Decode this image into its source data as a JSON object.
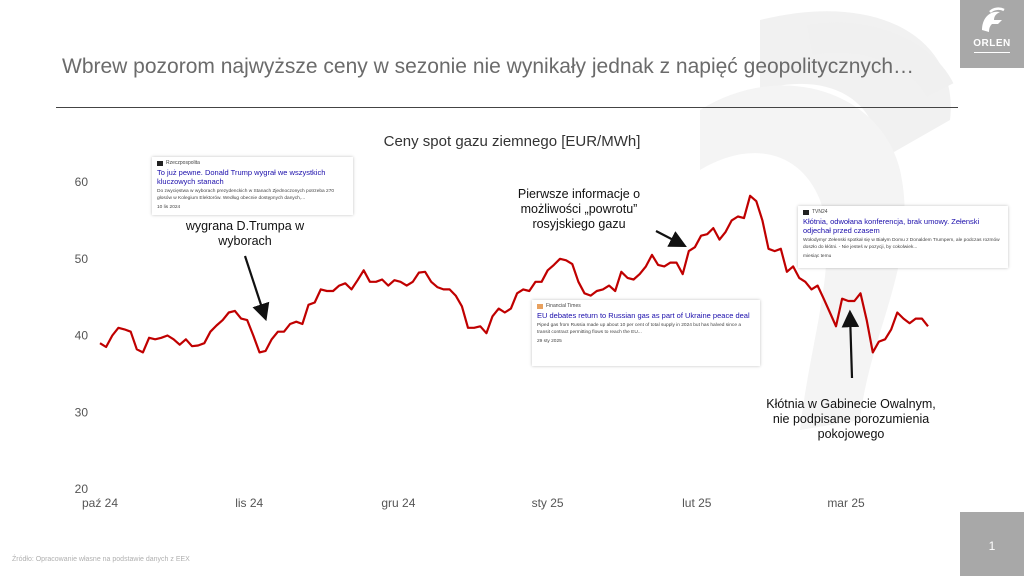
{
  "slide": {
    "title": "Wbrew pozorom najwyższe ceny w sezonie nie wynikały jednak z napięć geopolitycznych…",
    "logo_text": "ORLEN",
    "page_number": "1",
    "source_note": "Źródło: Opracowanie własne na podstawie danych z EEX",
    "colors": {
      "line": "#c00000",
      "title": "#6b6b6b",
      "accent_box": "#a8a8a8"
    }
  },
  "chart_data": {
    "type": "line",
    "title": "Ceny spot gazu ziemnego  [EUR/MWh]",
    "ylim": [
      20,
      60
    ],
    "yticks": [
      "20",
      "30",
      "40",
      "50",
      "60"
    ],
    "xticks": [
      "paź 24",
      "lis 24",
      "gru 24",
      "sty 25",
      "lut 25",
      "mar 25"
    ],
    "series": [
      {
        "values": [
          39.0,
          38.5,
          40.0,
          41.0,
          40.8,
          40.5,
          38.2,
          37.8,
          39.7,
          39.5,
          39.7,
          40.0,
          39.5,
          38.8,
          39.5,
          38.6,
          38.7,
          39.0,
          40.5,
          41.3,
          42.0,
          43.0,
          43.2,
          42.2,
          42.0,
          40.0,
          37.8,
          38.0,
          39.5,
          40.5,
          40.5,
          41.5,
          41.8,
          41.5,
          44.0,
          44.3,
          46.0,
          45.8,
          45.8,
          46.5,
          46.8,
          46.0,
          47.2,
          48.5,
          47.0,
          47.0,
          47.3,
          46.5,
          47.2,
          47.0,
          46.5,
          47.0,
          48.2,
          48.3,
          47.0,
          46.3,
          46.0,
          46.0,
          45.2,
          43.8,
          41.0,
          41.0,
          41.2,
          40.3,
          42.5,
          43.5,
          43.0,
          43.5,
          45.5,
          46.0,
          45.8,
          47.0,
          47.0,
          48.5,
          49.2,
          50.0,
          49.8,
          49.3,
          47.0,
          45.5,
          45.2,
          45.8,
          46.0,
          46.5,
          45.8,
          48.3,
          47.5,
          47.3,
          48.0,
          49.0,
          50.5,
          49.2,
          49.0,
          49.5,
          49.5,
          48.0,
          51.0,
          51.5,
          53.0,
          53.2,
          54.0,
          52.5,
          53.5,
          55.0,
          55.5,
          55.3,
          58.2,
          57.5,
          55.0,
          51.3,
          51.0,
          51.3,
          48.3,
          49.0,
          47.5,
          47.0,
          46.0,
          46.5,
          44.8,
          43.0,
          41.2,
          44.8,
          44.5,
          44.5,
          45.5,
          42.0,
          37.8,
          39.2,
          39.5,
          40.8,
          43.0,
          42.2,
          41.6,
          42.2,
          42.2,
          41.2
        ]
      }
    ],
    "annotations": [
      {
        "text": "wygrana D.Trumpa w wyborach"
      },
      {
        "text": "Pierwsze informacje o możliwości „powrotu” rosyjskiego gazu"
      },
      {
        "text": "Kłótnia w Gabinecie Owalnym,  nie podpisane porozumienia pokojowego"
      }
    ]
  },
  "news_cards": [
    {
      "source": "Rzeczpospolita",
      "headline": "To już pewne. Donald Trump wygrał we wszystkich kluczowych stanach",
      "body": "Do zwycięstwa w wyborach prezydenckich w Stanach Zjednoczonych potrzeba 270 głosów w Kolegium Elektorów. Według obecnie dostępnych danych,...",
      "date": "10 lis 2024"
    },
    {
      "source": "Financial Times",
      "headline": "EU debates return to Russian gas as part of Ukraine peace deal",
      "body": "Piped gas from Russia made up about 10 per cent of total supply in 2024 but has halved since a transit contract permitting flows to reach the EU...",
      "date": "29 sty 2025"
    },
    {
      "source": "TVN24",
      "headline": "Kłótnia, odwołana konferencja, brak umowy. Zełenski odjechał przed czasem",
      "body": "Wołodymyr Zełenski spotkał się w Białym Domu z Donaldem Trumpem, ale podczas rozmów doszło do kłótni. - Nie jesteś w pozycji, by cokolwiek...",
      "date": "miesiąc temu"
    }
  ]
}
